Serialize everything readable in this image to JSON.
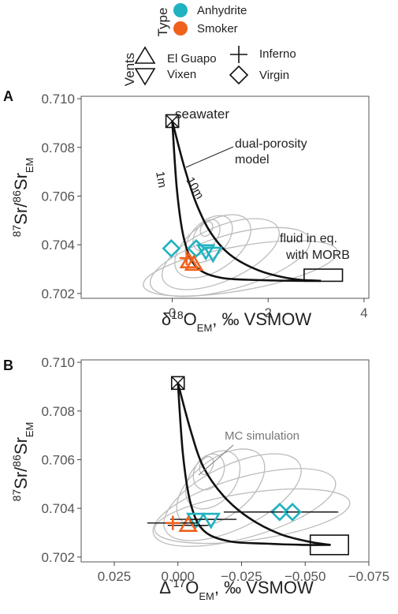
{
  "legend": {
    "type_title": "Type",
    "types": [
      {
        "label": "Anhydrite",
        "color": "#20b2c0"
      },
      {
        "label": "Smoker",
        "color": "#f0611e"
      }
    ],
    "vents_title": "Vents",
    "vents": [
      {
        "label": "El Guapo",
        "shape": "triangle-up"
      },
      {
        "label": "Vixen",
        "shape": "triangle-down"
      },
      {
        "label": "Inferno",
        "shape": "plus"
      },
      {
        "label": "Virgin",
        "shape": "diamond"
      }
    ]
  },
  "chart_data": [
    {
      "panel": "A",
      "type": "scatter",
      "xlabel": "δ18OEM, ‰ VSMOW",
      "ylabel": "87Sr/86SrEM",
      "xlim": [
        -1.9,
        4.1
      ],
      "ylim": [
        0.7018,
        0.7101
      ],
      "xticks": [
        0,
        2,
        4
      ],
      "yticks": [
        0.702,
        0.704,
        0.706,
        0.708,
        0.71
      ],
      "ytick_labels": [
        "0.702",
        "0.704",
        "0.706",
        "0.708",
        "0.710"
      ],
      "grid": false,
      "annotations": [
        "seawater",
        "dual-porosity model",
        "1m",
        "10m",
        "fluid in eq. with MORB"
      ],
      "seawater": {
        "x": 0.0,
        "y": 0.70908
      },
      "morb_box": {
        "x": [
          2.75,
          3.55
        ],
        "y": [
          0.7025,
          0.703
        ]
      },
      "model_curves": [
        {
          "name": "1m",
          "x": [
            0,
            0.1,
            0.25,
            0.5,
            1.0,
            1.8,
            2.6,
            3.1
          ],
          "y": [
            0.70908,
            0.7062,
            0.7042,
            0.7031,
            0.70265,
            0.70255,
            0.70252,
            0.70252
          ]
        },
        {
          "name": "10m",
          "x": [
            0,
            0.25,
            0.5,
            0.8,
            1.2,
            1.8,
            2.5,
            3.1
          ],
          "y": [
            0.70908,
            0.7072,
            0.7057,
            0.7045,
            0.7036,
            0.70295,
            0.7026,
            0.70252
          ]
        }
      ],
      "points": [
        {
          "type": "Anhydrite",
          "vent": "Virgin",
          "x": -0.02,
          "y": 0.70385
        },
        {
          "type": "Anhydrite",
          "vent": "Virgin",
          "x": 0.5,
          "y": 0.70385
        },
        {
          "type": "Anhydrite",
          "vent": "Vixen",
          "x": 0.7,
          "y": 0.70375
        },
        {
          "type": "Anhydrite",
          "vent": "Vixen",
          "x": 0.85,
          "y": 0.70365
        },
        {
          "type": "Smoker",
          "vent": "El Guapo",
          "x": 0.35,
          "y": 0.7033
        },
        {
          "type": "Smoker",
          "vent": "El Guapo",
          "x": 0.45,
          "y": 0.7032
        },
        {
          "type": "Smoker",
          "vent": "Inferno",
          "x": 0.3,
          "y": 0.70345
        }
      ]
    },
    {
      "panel": "B",
      "type": "scatter",
      "xlabel": "Δ'17OEM, ‰ VSMOW",
      "ylabel": "87Sr/86SrEM",
      "xlim": [
        0.038,
        -0.075
      ],
      "ylim": [
        0.7018,
        0.7101
      ],
      "xticks": [
        0.025,
        0,
        -0.025,
        -0.05,
        -0.075
      ],
      "xtick_labels": [
        "0.025",
        "0.000",
        "−0.025",
        "−0.050",
        "−0.075"
      ],
      "yticks": [
        0.702,
        0.704,
        0.706,
        0.708,
        0.71
      ],
      "ytick_labels": [
        "0.702",
        "0.704",
        "0.706",
        "0.708",
        "0.710"
      ],
      "grid": false,
      "annotations": [
        "MC simulation"
      ],
      "seawater": {
        "x": 0.0,
        "y": 0.70915
      },
      "morb_box": {
        "x": [
          -0.052,
          -0.067
        ],
        "y": [
          0.7021,
          0.7029
        ]
      },
      "model_curves": [
        {
          "name": "1m",
          "x": [
            0,
            -0.002,
            -0.005,
            -0.01,
            -0.02,
            -0.035,
            -0.05,
            -0.06
          ],
          "y": [
            0.70915,
            0.7062,
            0.7042,
            0.7031,
            0.70265,
            0.70255,
            0.7025,
            0.7025
          ]
        },
        {
          "name": "10m",
          "x": [
            0,
            -0.005,
            -0.01,
            -0.018,
            -0.028,
            -0.04,
            -0.052,
            -0.06
          ],
          "y": [
            0.70915,
            0.7072,
            0.7057,
            0.7045,
            0.7036,
            0.70295,
            0.70262,
            0.7025
          ]
        }
      ],
      "points": [
        {
          "type": "Anhydrite",
          "vent": "Virgin",
          "x": -0.04,
          "y": 0.70385,
          "xerr": 0.022
        },
        {
          "type": "Anhydrite",
          "vent": "Virgin",
          "x": -0.045,
          "y": 0.70385,
          "xerr": 0.018
        },
        {
          "type": "Anhydrite",
          "vent": "Vixen",
          "x": -0.007,
          "y": 0.70355,
          "xerr": 0.01
        },
        {
          "type": "Anhydrite",
          "vent": "Vixen",
          "x": -0.013,
          "y": 0.70355,
          "xerr": 0.01
        },
        {
          "type": "Smoker",
          "vent": "El Guapo",
          "x": -0.004,
          "y": 0.7033,
          "xerr": 0.008
        },
        {
          "type": "Smoker",
          "vent": "Inferno",
          "x": 0.002,
          "y": 0.7034,
          "xerr": 0.01
        }
      ]
    }
  ]
}
